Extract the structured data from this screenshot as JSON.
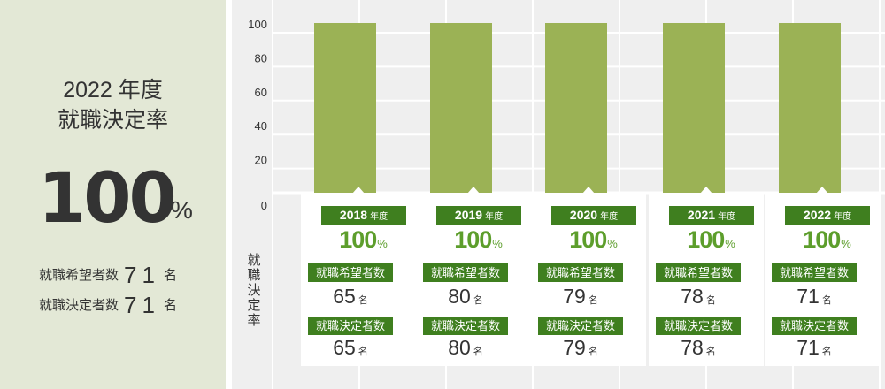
{
  "summary": {
    "year": "2022 年度",
    "title": "就職決定率",
    "rate": "100",
    "rate_unit": "%",
    "applicants_label": "就職希望者数",
    "applicants_value": "71",
    "placed_label": "就職決定者数",
    "placed_value": "71",
    "unit": "名"
  },
  "chart_data": {
    "type": "bar",
    "categories": [
      "2018",
      "2019",
      "2020",
      "2021",
      "2022"
    ],
    "values": [
      100,
      100,
      100,
      100,
      100
    ],
    "ylabel": "就職決定率",
    "ylim": [
      0,
      100
    ],
    "yticks": [
      0,
      20,
      40,
      60,
      80,
      100
    ],
    "grid": true,
    "bar_color": "#9bb255"
  },
  "cards": [
    {
      "year": "2018",
      "nendo": "年度",
      "rate": "100",
      "pct": "%",
      "label1": "就職希望者数",
      "value1": "65",
      "label2": "就職決定者数",
      "value2": "65",
      "unit": "名"
    },
    {
      "year": "2019",
      "nendo": "年度",
      "rate": "100",
      "pct": "%",
      "label1": "就職希望者数",
      "value1": "80",
      "label2": "就職決定者数",
      "value2": "80",
      "unit": "名"
    },
    {
      "year": "2020",
      "nendo": "年度",
      "rate": "100",
      "pct": "%",
      "label1": "就職希望者数",
      "value1": "79",
      "label2": "就職決定者数",
      "value2": "79",
      "unit": "名"
    },
    {
      "year": "2021",
      "nendo": "年度",
      "rate": "100",
      "pct": "%",
      "label1": "就職希望者数",
      "value1": "78",
      "label2": "就職決定者数",
      "value2": "78",
      "unit": "名"
    },
    {
      "year": "2022",
      "nendo": "年度",
      "rate": "100",
      "pct": "%",
      "label1": "就職希望者数",
      "value1": "71",
      "label2": "就職決定者数",
      "value2": "71",
      "unit": "名"
    }
  ],
  "colors": {
    "panel_bg": "#e3e8d6",
    "chart_bg": "#efefef",
    "label_bg": "#3f7f1f",
    "rate_text": "#5d9e2c",
    "bar": "#9bb255"
  }
}
